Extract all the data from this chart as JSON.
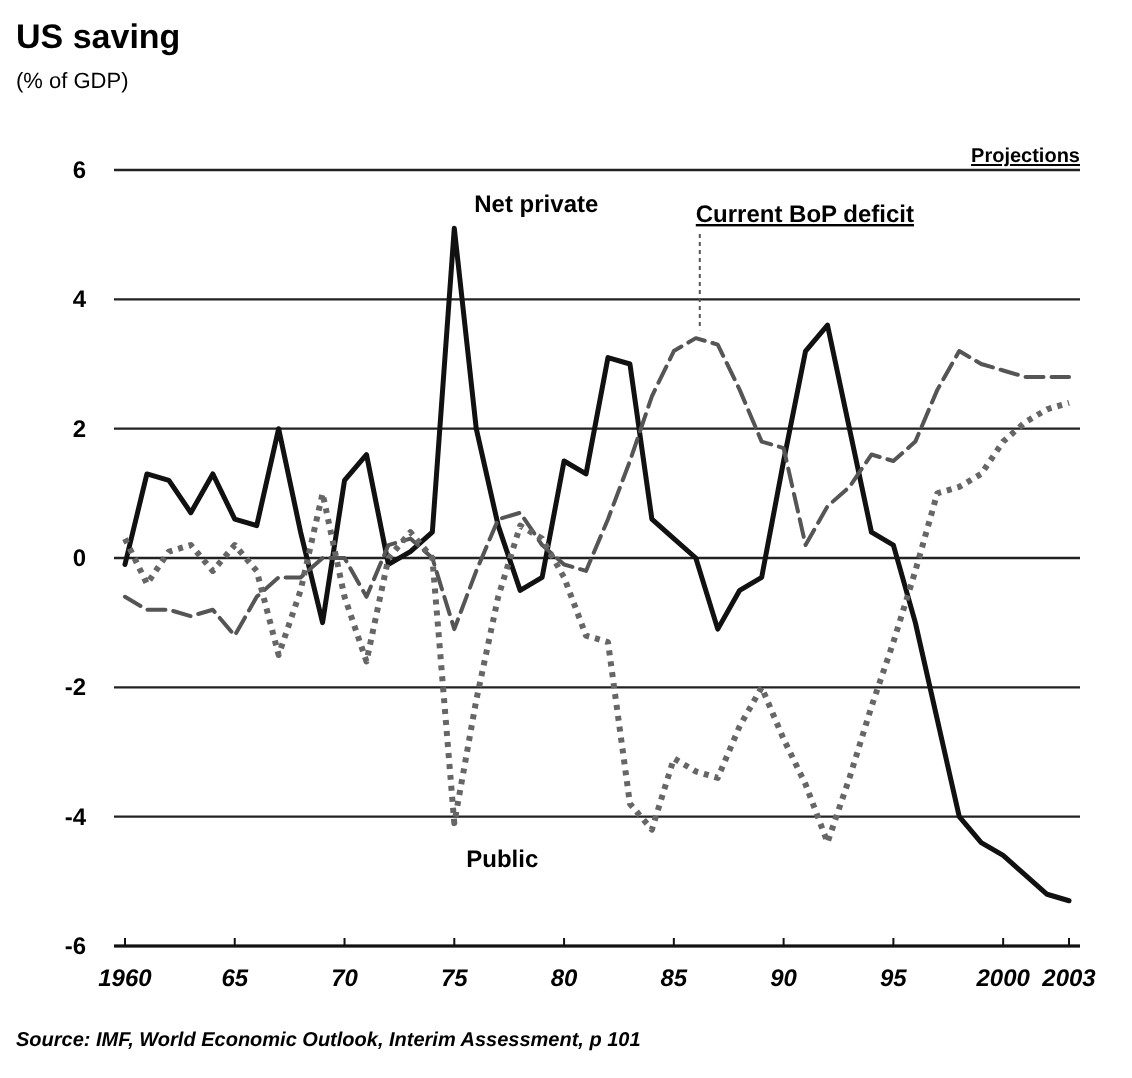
{
  "chart_data": {
    "type": "line",
    "title": "US saving",
    "subtitle": "(% of GDP)",
    "x": [
      1960,
      1961,
      1962,
      1963,
      1964,
      1965,
      1966,
      1967,
      1968,
      1969,
      1970,
      1971,
      1972,
      1973,
      1974,
      1975,
      1976,
      1977,
      1978,
      1979,
      1980,
      1981,
      1982,
      1983,
      1984,
      1985,
      1986,
      1987,
      1988,
      1989,
      1990,
      1991,
      1992,
      1993,
      1994,
      1995,
      1996,
      1997,
      1998,
      1999,
      2000,
      2001,
      2002,
      2003
    ],
    "series": [
      {
        "name": "Net private",
        "color": "#111111",
        "line_style": "solid",
        "values": [
          -0.1,
          1.3,
          1.2,
          0.7,
          1.3,
          0.6,
          0.5,
          2.0,
          0.4,
          -1.0,
          1.2,
          1.6,
          -0.1,
          0.1,
          0.4,
          5.1,
          2.0,
          0.5,
          -0.5,
          -0.3,
          1.5,
          1.3,
          3.1,
          3.0,
          0.6,
          0.3,
          0.0,
          -1.1,
          -0.5,
          -0.3,
          1.5,
          3.2,
          3.6,
          2.0,
          0.4,
          0.2,
          -1.0,
          -2.5,
          -4.0,
          -4.4,
          -4.6,
          -4.9,
          -5.2,
          -5.3
        ]
      },
      {
        "name": "Current BoP deficit",
        "color": "#555555",
        "line_style": "dashed",
        "values": [
          -0.6,
          -0.8,
          -0.8,
          -0.9,
          -0.8,
          -1.2,
          -0.6,
          -0.3,
          -0.3,
          0.0,
          0.0,
          -0.6,
          0.2,
          0.3,
          0.0,
          -1.1,
          -0.2,
          0.6,
          0.7,
          0.2,
          -0.1,
          -0.2,
          0.6,
          1.5,
          2.5,
          3.2,
          3.4,
          3.3,
          2.6,
          1.8,
          1.7,
          0.2,
          0.8,
          1.1,
          1.6,
          1.5,
          1.8,
          2.6,
          3.2,
          3.0,
          2.9,
          2.8,
          2.8,
          2.8
        ]
      },
      {
        "name": "Public",
        "color": "#666666",
        "line_style": "dotted",
        "values": [
          0.3,
          -0.4,
          0.1,
          0.2,
          -0.2,
          0.2,
          -0.2,
          -1.5,
          -0.5,
          1.0,
          -0.6,
          -1.6,
          0.0,
          0.4,
          0.0,
          -4.1,
          -2.2,
          -0.6,
          0.5,
          0.3,
          -0.3,
          -1.2,
          -1.3,
          -3.8,
          -4.2,
          -3.1,
          -3.3,
          -3.4,
          -2.6,
          -2.0,
          -2.8,
          -3.5,
          -4.4,
          -3.4,
          -2.3,
          -1.3,
          -0.2,
          1.0,
          1.1,
          1.3,
          1.8,
          2.1,
          2.3,
          2.4
        ]
      }
    ],
    "xlim": [
      1959.5,
      2003.5
    ],
    "xticks": [
      1960,
      {
        "value": 1965,
        "label": "65"
      },
      {
        "value": 1970,
        "label": "70"
      },
      {
        "value": 1975,
        "label": "75"
      },
      {
        "value": 1980,
        "label": "80"
      },
      {
        "value": 1985,
        "label": "85"
      },
      {
        "value": 1990,
        "label": "90"
      },
      {
        "value": 1995,
        "label": "95"
      },
      2000,
      2003
    ],
    "ylim": [
      -6,
      6
    ],
    "yticks": [
      -6,
      -4,
      -2,
      0,
      2,
      4,
      6
    ],
    "grid": "y",
    "annotations": [
      "Projections",
      "Source: IMF, World Economic Outlook, Interim Assessment, p 101"
    ]
  }
}
